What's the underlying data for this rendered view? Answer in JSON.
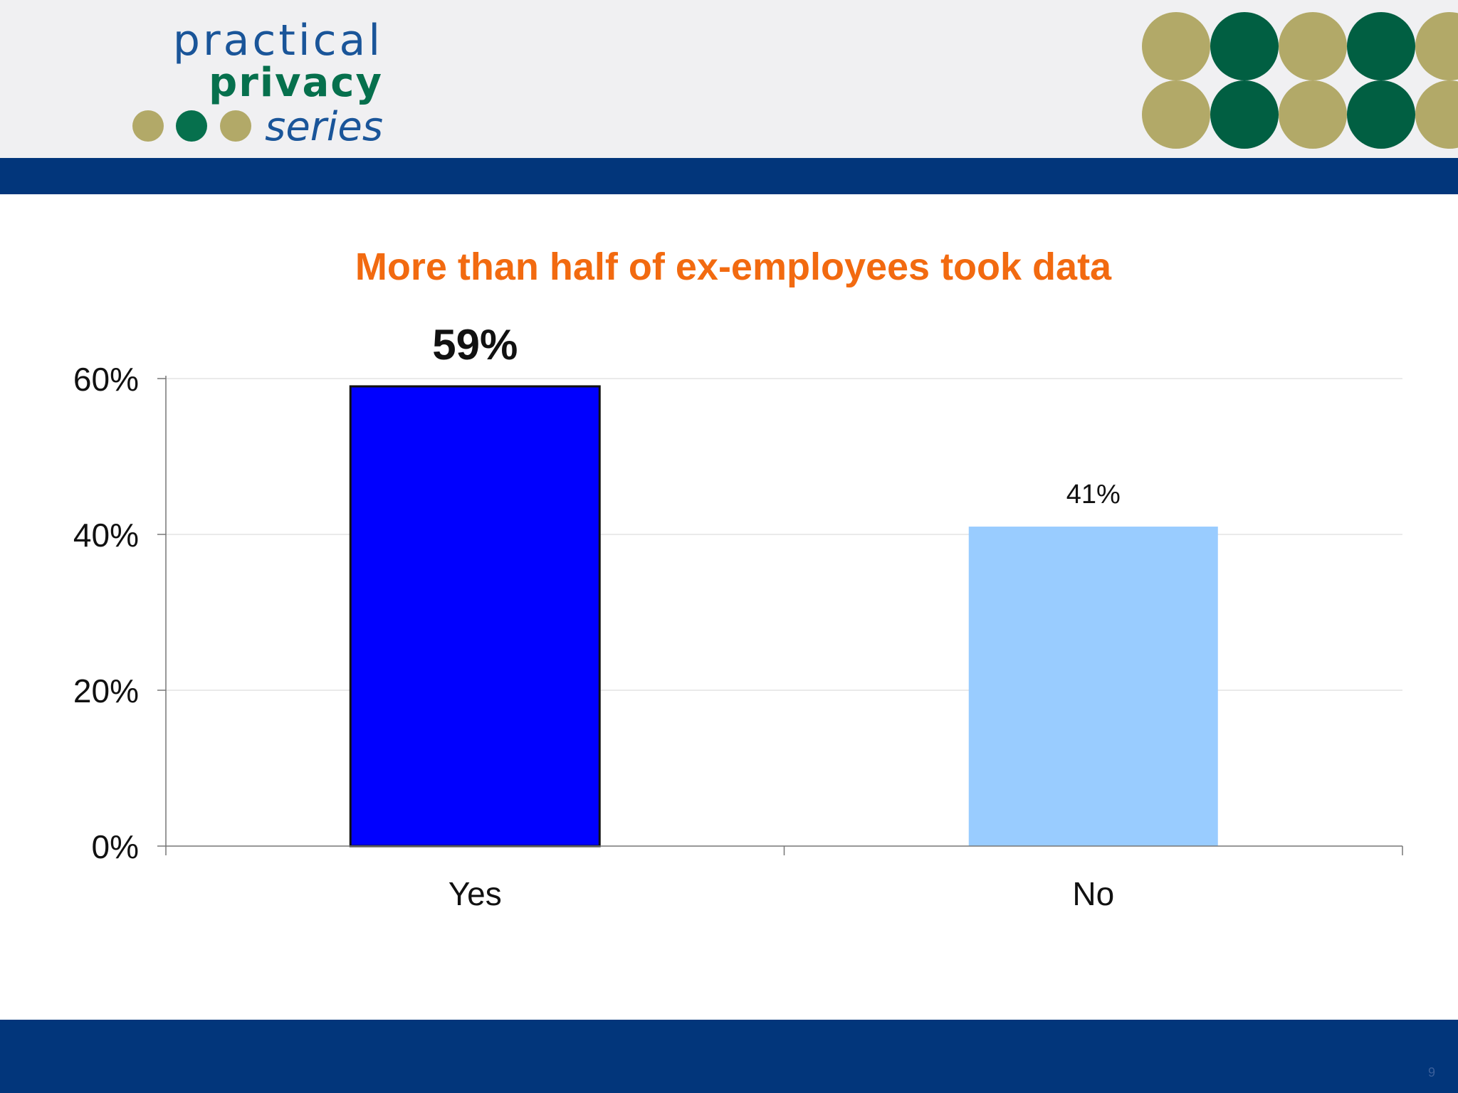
{
  "logo": {
    "line1": "practical",
    "line2": "privacy",
    "line3": "series",
    "dot_colors": [
      "#b2a968",
      "#06704d",
      "#b2a968"
    ]
  },
  "decoration": {
    "dot_colors": [
      "#b2a968",
      "#015f42",
      "#b2a968",
      "#015f42",
      "#b2a968"
    ]
  },
  "theme": {
    "band_color": "#02367b",
    "title_color": "#f26a10"
  },
  "chart_data": {
    "type": "bar",
    "title": "More than half of ex-employees took data",
    "categories": [
      "Yes",
      "No"
    ],
    "values": [
      59,
      41
    ],
    "value_labels": [
      "59%",
      "41%"
    ],
    "bar_colors": [
      "#0000ff",
      "#99ccff"
    ],
    "ylim": [
      0,
      60
    ],
    "yticks": [
      "0%",
      "20%",
      "40%",
      "60%"
    ],
    "ytick_values": [
      0,
      20,
      40,
      60
    ],
    "grid": true,
    "legend": "none"
  },
  "page_number": "9"
}
